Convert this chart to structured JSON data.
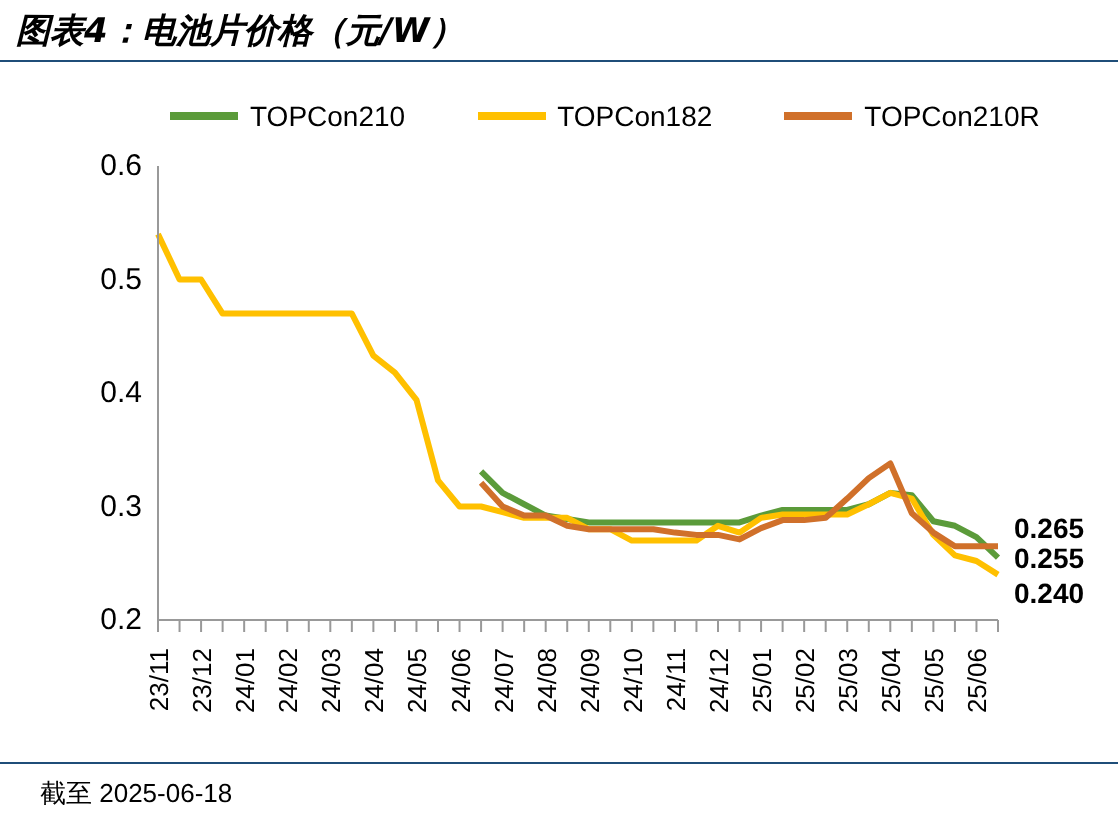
{
  "chart_data": {
    "type": "line",
    "title": "图表4：电池片价格（元/W）",
    "categories": [
      "23/11",
      null,
      "23/12",
      null,
      "24/01",
      null,
      "24/02",
      null,
      "24/03",
      null,
      "24/04",
      null,
      "24/05",
      null,
      "24/06",
      null,
      "24/07",
      null,
      "24/08",
      null,
      "24/09",
      null,
      "24/10",
      null,
      "24/11",
      null,
      "24/12",
      null,
      "25/01",
      null,
      "25/02",
      null,
      "25/03",
      null,
      "25/04",
      null,
      "25/05",
      null,
      "25/06",
      null
    ],
    "series": [
      {
        "name": "TOPCon210",
        "color": "#5b9b3a",
        "values": [
          null,
          null,
          null,
          null,
          null,
          null,
          null,
          null,
          null,
          null,
          null,
          null,
          null,
          null,
          null,
          0.331,
          0.312,
          0.302,
          0.292,
          0.289,
          0.286,
          0.286,
          0.286,
          0.286,
          0.286,
          0.286,
          0.286,
          0.286,
          0.292,
          0.297,
          0.297,
          0.297,
          0.297,
          0.302,
          0.312,
          0.31,
          0.287,
          0.283,
          0.273,
          0.255
        ],
        "value_labels": [
          null,
          null,
          null,
          null,
          null,
          null,
          null,
          null,
          null,
          null,
          null,
          null,
          null,
          null,
          null,
          null,
          null,
          null,
          null,
          null,
          null,
          null,
          null,
          null,
          null,
          null,
          null,
          null,
          null,
          null,
          null,
          null,
          null,
          null,
          null,
          null,
          null,
          null,
          null,
          "0.255"
        ]
      },
      {
        "name": "TOPCon182",
        "color": "#ffc000",
        "values": [
          0.54,
          0.5,
          0.5,
          0.47,
          0.47,
          0.47,
          0.47,
          0.47,
          0.47,
          0.47,
          0.433,
          0.418,
          0.394,
          0.323,
          0.3,
          0.3,
          0.295,
          0.29,
          0.29,
          0.29,
          0.28,
          0.28,
          0.27,
          0.27,
          0.27,
          0.27,
          0.283,
          0.277,
          0.29,
          0.293,
          0.293,
          0.293,
          0.293,
          0.302,
          0.312,
          0.307,
          0.275,
          0.257,
          0.252,
          0.24
        ],
        "value_labels": [
          null,
          null,
          null,
          null,
          null,
          null,
          null,
          null,
          null,
          null,
          null,
          null,
          null,
          null,
          null,
          null,
          null,
          null,
          null,
          null,
          null,
          null,
          null,
          null,
          null,
          null,
          null,
          null,
          null,
          null,
          null,
          null,
          null,
          null,
          null,
          null,
          null,
          null,
          null,
          "0.240"
        ]
      },
      {
        "name": "TOPCon210R",
        "color": "#d0702a",
        "values": [
          null,
          null,
          null,
          null,
          null,
          null,
          null,
          null,
          null,
          null,
          null,
          null,
          null,
          null,
          null,
          0.321,
          0.3,
          0.292,
          0.292,
          0.283,
          0.28,
          0.28,
          0.28,
          0.28,
          0.277,
          0.275,
          0.275,
          0.271,
          0.281,
          0.288,
          0.288,
          0.29,
          0.307,
          0.325,
          0.338,
          0.294,
          0.277,
          0.265,
          0.265,
          0.265
        ],
        "value_labels": [
          null,
          null,
          null,
          null,
          null,
          null,
          null,
          null,
          null,
          null,
          null,
          null,
          null,
          null,
          null,
          null,
          null,
          null,
          null,
          null,
          null,
          null,
          null,
          null,
          null,
          null,
          null,
          null,
          null,
          null,
          null,
          null,
          null,
          null,
          null,
          null,
          null,
          null,
          null,
          "0.265"
        ]
      }
    ],
    "ylim": [
      0.2,
      0.6
    ],
    "yticks": [
      0.2,
      0.3,
      0.4,
      0.5,
      0.6
    ],
    "grid": false,
    "legend": "top",
    "marker": "none",
    "line_style": "solid",
    "annotations": [
      "截至 2025-06-18"
    ]
  }
}
